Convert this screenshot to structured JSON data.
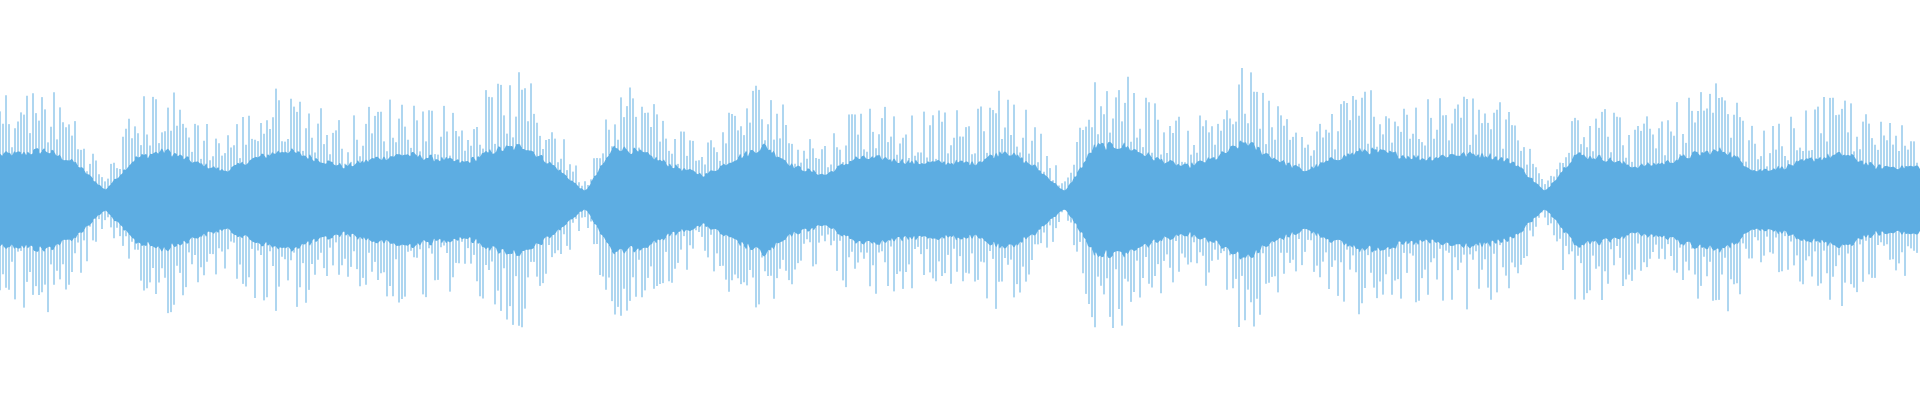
{
  "chart_data": {
    "type": "area",
    "title": "",
    "xlabel": "",
    "ylabel": "",
    "ylim": [
      -1,
      1
    ],
    "grid": false,
    "legend": "none",
    "color": "#5dade2",
    "background": "#ffffff",
    "symmetric": true,
    "peak_envelope": [
      0.55,
      0.6,
      0.45,
      0.12,
      0.5,
      0.6,
      0.45,
      0.35,
      0.5,
      0.6,
      0.5,
      0.4,
      0.5,
      0.55,
      0.5,
      0.45,
      0.6,
      0.65,
      0.4,
      0.1,
      0.65,
      0.55,
      0.4,
      0.3,
      0.5,
      0.65,
      0.4,
      0.3,
      0.5,
      0.5,
      0.45,
      0.45,
      0.45,
      0.6,
      0.4,
      0.1,
      0.65,
      0.65,
      0.5,
      0.4,
      0.5,
      0.7,
      0.5,
      0.35,
      0.5,
      0.6,
      0.55,
      0.5,
      0.55,
      0.55,
      0.45,
      0.1,
      0.55,
      0.5,
      0.4,
      0.45,
      0.55,
      0.6,
      0.35,
      0.4,
      0.5,
      0.55,
      0.4,
      0.4
    ]
  }
}
